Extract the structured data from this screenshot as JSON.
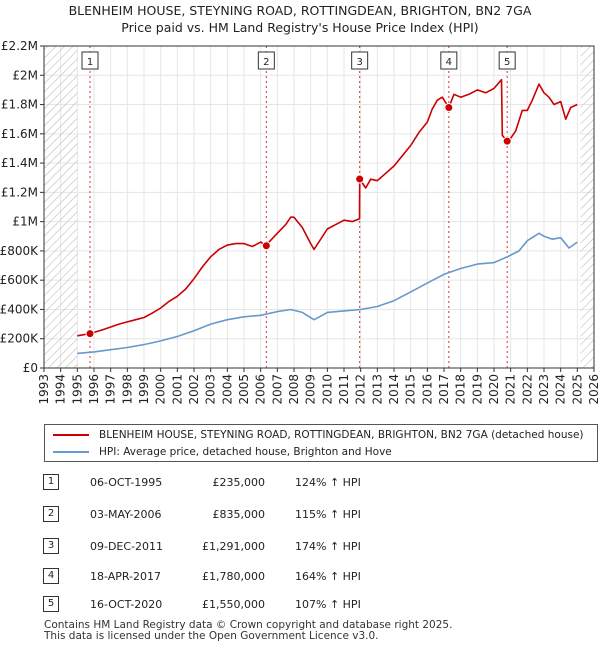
{
  "title_line1": "BLENHEIM HOUSE, STEYNING ROAD, ROTTINGDEAN, BRIGHTON, BN2 7GA",
  "title_line2": "Price paid vs. HM Land Registry's House Price Index (HPI)",
  "colors": {
    "property": "#cc0000",
    "hpi": "#6699cc",
    "marker": "#cc0000",
    "hatch": "#bbbbbb"
  },
  "chart_data": {
    "type": "line",
    "xlim": [
      1993,
      2026
    ],
    "ylim": [
      0,
      2200000
    ],
    "y_ticks": [
      0,
      200000,
      400000,
      600000,
      800000,
      1000000,
      1200000,
      1400000,
      1600000,
      1800000,
      2000000,
      2200000
    ],
    "y_tick_labels": [
      "£0",
      "£200K",
      "£400K",
      "£600K",
      "£800K",
      "£1M",
      "£1.2M",
      "£1.4M",
      "£1.6M",
      "£1.8M",
      "£2M",
      "£2.2M"
    ],
    "x_ticks": [
      1993,
      1994,
      1995,
      1996,
      1997,
      1998,
      1999,
      2000,
      2001,
      2002,
      2003,
      2004,
      2005,
      2006,
      2007,
      2008,
      2009,
      2010,
      2011,
      2012,
      2013,
      2014,
      2015,
      2016,
      2017,
      2018,
      2019,
      2020,
      2021,
      2022,
      2023,
      2024,
      2025,
      2026
    ],
    "x_tick_labels": [
      "1993",
      "1994",
      "1995",
      "1996",
      "1997",
      "1998",
      "1999",
      "2000",
      "2001",
      "2002",
      "2003",
      "2004",
      "2005",
      "2006",
      "2007",
      "2008",
      "2009",
      "2010",
      "2011",
      "2012",
      "2013",
      "2014",
      "2015",
      "2016",
      "2017",
      "2018",
      "2019",
      "2020",
      "2021",
      "2022",
      "2023",
      "2024",
      "2025",
      "2026"
    ],
    "data_start": 1995.0,
    "data_end": 2025.2,
    "series": [
      {
        "name": "BLENHEIM HOUSE, STEYNING ROAD, ROTTINGDEAN, BRIGHTON, BN2 7GA (detached house)",
        "key": "property",
        "x": [
          1995.0,
          1995.76,
          1996.5,
          1997,
          1997.5,
          1998,
          1998.5,
          1999,
          1999.5,
          2000,
          2000.5,
          2001,
          2001.5,
          2002,
          2002.5,
          2003,
          2003.5,
          2004,
          2004.5,
          2005,
          2005.5,
          2006,
          2006.34,
          2006.5,
          2007,
          2007.5,
          2007.8,
          2008,
          2008.5,
          2009,
          2009.2,
          2009.6,
          2010,
          2010.5,
          2011,
          2011.5,
          2011.93,
          2011.94,
          2012.3,
          2012.6,
          2013,
          2013.5,
          2014,
          2014.5,
          2015,
          2015.5,
          2016,
          2016.3,
          2016.6,
          2016.9,
          2017.29,
          2017.6,
          2018,
          2018.5,
          2019,
          2019.5,
          2020,
          2020.45,
          2020.5,
          2020.79,
          2021,
          2021.3,
          2021.7,
          2022,
          2022.3,
          2022.7,
          2023,
          2023.3,
          2023.6,
          2024,
          2024.3,
          2024.6,
          2025.0
        ],
        "y": [
          220000,
          235000,
          260000,
          280000,
          300000,
          315000,
          330000,
          345000,
          375000,
          410000,
          455000,
          490000,
          540000,
          610000,
          690000,
          760000,
          810000,
          840000,
          850000,
          850000,
          830000,
          860000,
          835000,
          860000,
          920000,
          980000,
          1030000,
          1030000,
          960000,
          850000,
          810000,
          880000,
          950000,
          980000,
          1010000,
          1000000,
          1020000,
          1291000,
          1230000,
          1290000,
          1280000,
          1330000,
          1380000,
          1450000,
          1520000,
          1610000,
          1680000,
          1770000,
          1830000,
          1850000,
          1780000,
          1870000,
          1850000,
          1870000,
          1900000,
          1880000,
          1910000,
          1970000,
          1590000,
          1550000,
          1570000,
          1620000,
          1760000,
          1760000,
          1830000,
          1940000,
          1880000,
          1850000,
          1800000,
          1820000,
          1700000,
          1780000,
          1800000
        ]
      },
      {
        "name": "HPI: Average price, detached house, Brighton and Hove",
        "key": "hpi",
        "x": [
          1995.0,
          1996,
          1997,
          1998,
          1999,
          2000,
          2001,
          2002,
          2003,
          2004,
          2005,
          2006,
          2007,
          2007.8,
          2008.5,
          2009.2,
          2009.7,
          2010,
          2011,
          2012,
          2013,
          2014,
          2015,
          2016,
          2017,
          2018,
          2019,
          2020,
          2020.8,
          2021.5,
          2022,
          2022.7,
          2023,
          2023.5,
          2024,
          2024.5,
          2025.0
        ],
        "y": [
          100000,
          110000,
          125000,
          140000,
          160000,
          185000,
          215000,
          255000,
          300000,
          330000,
          350000,
          360000,
          385000,
          400000,
          380000,
          330000,
          360000,
          380000,
          390000,
          400000,
          420000,
          460000,
          520000,
          580000,
          640000,
          680000,
          710000,
          720000,
          760000,
          800000,
          870000,
          920000,
          900000,
          880000,
          890000,
          820000,
          860000
        ]
      }
    ],
    "sales": [
      {
        "num": "1",
        "x": 1995.76,
        "y": 235000,
        "date": "06-OCT-1995",
        "price": "£235,000",
        "hpi": "124% ↑ HPI"
      },
      {
        "num": "2",
        "x": 2006.34,
        "y": 835000,
        "date": "03-MAY-2006",
        "price": "£835,000",
        "hpi": "115% ↑ HPI"
      },
      {
        "num": "3",
        "x": 2011.94,
        "y": 1291000,
        "date": "09-DEC-2011",
        "price": "£1,291,000",
        "hpi": "174% ↑ HPI"
      },
      {
        "num": "4",
        "x": 2017.29,
        "y": 1780000,
        "date": "18-APR-2017",
        "price": "£1,780,000",
        "hpi": "164% ↑ HPI"
      },
      {
        "num": "5",
        "x": 2020.79,
        "y": 1550000,
        "date": "16-OCT-2020",
        "price": "£1,550,000",
        "hpi": "107% ↑ HPI"
      }
    ]
  },
  "legend": {
    "property": "BLENHEIM HOUSE, STEYNING ROAD, ROTTINGDEAN, BRIGHTON, BN2 7GA (detached house)",
    "hpi": "HPI: Average price, detached house, Brighton and Hove"
  },
  "footer": {
    "line1": "Contains HM Land Registry data © Crown copyright and database right 2025.",
    "line2": "This data is licensed under the Open Government Licence v3.0."
  }
}
